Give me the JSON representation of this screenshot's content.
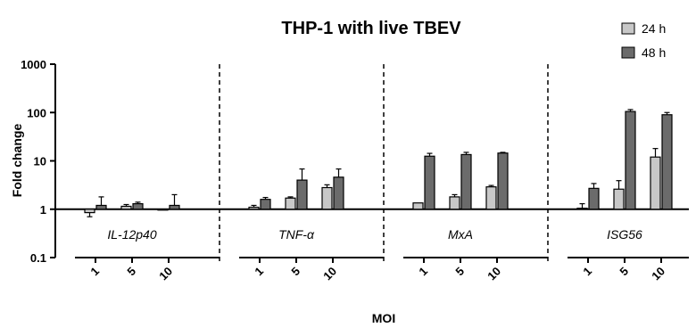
{
  "chart_data": {
    "type": "bar",
    "title": "THP-1 with live TBEV",
    "xlabel": "MOI",
    "ylabel": "Fold change",
    "yscale": "log",
    "ylim": [
      0.1,
      1000
    ],
    "yticks": [
      "0.1",
      "1",
      "10",
      "100",
      "1000"
    ],
    "baseline": 1,
    "groups": [
      "IL-12p40",
      "TNF-α",
      "MxA",
      "ISG56"
    ],
    "categories": [
      "1",
      "5",
      "10"
    ],
    "legend": {
      "placement": "top-right"
    },
    "series": [
      {
        "name": "24 h",
        "color": "#c8c8c8",
        "values": [
          [
            0.85,
            1.15,
            1.0
          ],
          [
            1.1,
            1.7,
            2.8
          ],
          [
            1.35,
            1.8,
            2.9
          ],
          [
            1.05,
            2.6,
            12
          ]
        ],
        "errors": [
          [
            0.15,
            0.1,
            0.0
          ],
          [
            0.1,
            0.1,
            0.4
          ],
          [
            0.0,
            0.2,
            0.2
          ],
          [
            0.25,
            1.3,
            6
          ]
        ]
      },
      {
        "name": "48 h",
        "color": "#6b6b6b",
        "values": [
          [
            1.2,
            1.3,
            1.2
          ],
          [
            1.6,
            4.0,
            4.6
          ],
          [
            12.5,
            13.5,
            14.5
          ],
          [
            2.7,
            105,
            90
          ]
        ],
        "errors": [
          [
            0.6,
            0.1,
            0.8
          ],
          [
            0.15,
            2.8,
            2.2
          ],
          [
            1.8,
            1.5,
            0.5
          ],
          [
            0.7,
            10,
            10
          ]
        ]
      }
    ]
  }
}
